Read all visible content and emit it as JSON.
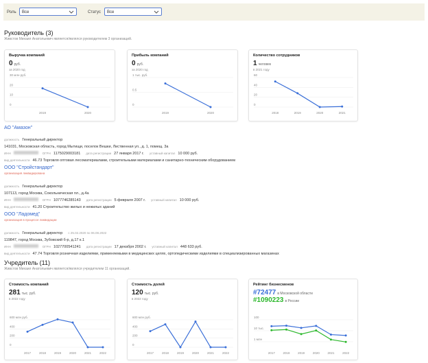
{
  "filters": [
    {
      "label": "Роль",
      "value": "Все"
    },
    {
      "label": "Статус",
      "value": "Все"
    }
  ],
  "sections": [
    {
      "title": "Руководитель (3)",
      "subtitle": "Живстов Михаил Анатольевич является/являлся руководителем 3 организаций.",
      "cards": [
        {
          "title": "Выручка компаний",
          "headline": [
            {
              "value": "0",
              "unit": "руб."
            }
          ],
          "period": "за 2020 год",
          "chart": {
            "type": "line",
            "x": [
              "2019",
              "2020"
            ],
            "series": [
              {
                "color": "#3a6fd8",
                "values": [
                  19,
                  0
                ]
              }
            ],
            "ylim": [
              0,
              30
            ],
            "yticks": [
              0,
              10,
              20,
              {
                "value": 30,
                "label": "30 млн руб."
              }
            ]
          }
        },
        {
          "title": "Прибыль компаний",
          "headline": [
            {
              "value": "0",
              "unit": "руб."
            }
          ],
          "period": "за 2020 год",
          "chart": {
            "type": "line",
            "x": [
              "2019",
              "2020"
            ],
            "series": [
              {
                "color": "#3a6fd8",
                "values": [
                  0.8,
                  0
                ]
              }
            ],
            "ylim": [
              0,
              1
            ],
            "yticks": [
              0,
              0.5,
              {
                "value": 1,
                "label": "1 тыс. руб."
              }
            ]
          }
        },
        {
          "title": "Количество сотрудников",
          "headline": [
            {
              "value": "1",
              "unit": "человек"
            }
          ],
          "period": "в 2021 году",
          "chart": {
            "type": "line",
            "x": [
              "2018",
              "2019",
              "2020",
              "2021"
            ],
            "series": [
              {
                "color": "#3a6fd8",
                "values": [
                  52,
                  28,
                  0,
                  1
                ]
              }
            ],
            "ylim": [
              0,
              60
            ],
            "yticks": [
              0,
              20,
              40,
              60
            ]
          }
        }
      ],
      "companies": [
        {
          "name": "АО \"Амазон\"",
          "position_label": "должность",
          "position": "Генеральный директор",
          "address": "141031, Московская область, город Мытищи, поселок Вешки, Лиственная ул., д. 1, помещ. 3а",
          "inn_label": "ИНН",
          "ogrn_label": "ОГРН",
          "ogrn": "1175029003181",
          "reg_label": "дата регистрации",
          "reg_date": "27 января 2017 г.",
          "capital_label": "уставный капитал",
          "capital": "10 000 руб.",
          "activity_label": "вид деятельности",
          "activity": "46.73 Торговля оптовая лесоматериалами, строительными материалами и санитарно-техническим оборудованием"
        },
        {
          "name": "ООО \"Стройстандарт\"",
          "status": "организация ликвидирована",
          "position_label": "должность",
          "position": "Генеральный директор",
          "address": "107113, город Москва, Сокольническая пл., д.4а",
          "inn_label": "ИНН",
          "ogrn_label": "ОГРН",
          "ogrn": "1077746285143",
          "reg_label": "дата регистрации",
          "reg_date": "5 февраля 2007 г.",
          "capital_label": "уставный капитал",
          "capital": "10 000 руб.",
          "activity_label": "вид деятельности",
          "activity": "41.20 Строительство жилых и нежилых зданий"
        },
        {
          "name": "ООО \"Ладомед\"",
          "status": "организация в процессе ликвидации",
          "position_label": "должность",
          "position": "Генеральный директор",
          "position_period": "с 25.02.2020 по 06.08.2022",
          "address": "119847, город Москва, Зубовский б-р, д.17 к.1",
          "inn_label": "ИНН",
          "ogrn_label": "ОГРН",
          "ogrn": "1027700541241",
          "reg_label": "дата регистрации",
          "reg_date": "17 декабря 2002 г.",
          "capital_label": "уставный капитал",
          "capital": "448 633 руб.",
          "activity_label": "вид деятельности",
          "activity": "47.74 Торговля розничная изделиями, применяемыми в медицинских целях, ортопедическими изделиями в специализированных магазинах"
        }
      ]
    },
    {
      "title": "Учредитель (11)",
      "subtitle": "Живстов Михаил Анатольевич является/являлся учредителем 11 организаций.",
      "cards": [
        {
          "title": "Стоимость компаний",
          "headline": [
            {
              "value": "281",
              "unit": "тыс. руб."
            }
          ],
          "period": "в 2022 году",
          "chart": {
            "type": "line",
            "x": [
              "2017",
              "2018",
              "2019",
              "2020",
              "2021",
              "2022"
            ],
            "series": [
              {
                "color": "#3a6fd8",
                "values": [
                  340,
                  490,
                  610,
                  540,
                  0,
                  0
                ]
              }
            ],
            "ylim": [
              0,
              600
            ],
            "yticks": [
              0,
              200,
              400,
              {
                "value": 600,
                "label": "600 млн руб."
              }
            ]
          }
        },
        {
          "title": "Стоимость долей",
          "headline": [
            {
              "value": "120",
              "unit": "тыс. руб."
            }
          ],
          "period": "в 2022 году",
          "chart": {
            "type": "line",
            "x": [
              "2017",
              "2018",
              "2019",
              "2020",
              "2021",
              "2022"
            ],
            "series": [
              {
                "color": "#3a6fd8",
                "values": [
                  350,
                  500,
                  0,
                  560,
                  0,
                  0
                ]
              }
            ],
            "ylim": [
              0,
              600
            ],
            "yticks": [
              0,
              200,
              400,
              {
                "value": 600,
                "label": "600 млн руб."
              }
            ]
          }
        },
        {
          "title": "Рейтинг бизнесменов",
          "headline": [
            {
              "value": "#72477",
              "unit": "в Московской области",
              "color": "#3a6fd8"
            },
            {
              "value": "#1090223",
              "unit": "в России",
              "color": "#2db82d"
            }
          ],
          "chart": {
            "type": "line",
            "log_scale": true,
            "y_reversed": true,
            "x": [
              "2017",
              "2018",
              "2019",
              "2020",
              "2021",
              "2022"
            ],
            "series": [
              {
                "color": "#3a6fd8",
                "values": [
                  1500,
                  1200,
                  3000,
                  1300,
                  50000,
                  72477
                ]
              },
              {
                "color": "#2db82d",
                "values": [
                  8000,
                  6000,
                  40000,
                  9000,
                  400000,
                  1090223
                ]
              }
            ],
            "ylim": [
              100,
              10000000
            ],
            "yticks": [
              100,
              {
                "value": 10000,
                "label": "10 тыс."
              },
              {
                "value": 1000000,
                "label": "1 млн"
              }
            ]
          }
        }
      ]
    }
  ]
}
